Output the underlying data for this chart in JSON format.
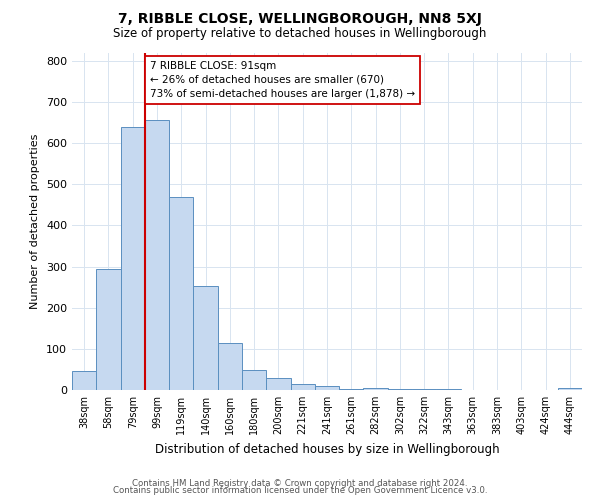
{
  "title": "7, RIBBLE CLOSE, WELLINGBOROUGH, NN8 5XJ",
  "subtitle": "Size of property relative to detached houses in Wellingborough",
  "xlabel": "Distribution of detached houses by size in Wellingborough",
  "ylabel": "Number of detached properties",
  "bar_labels": [
    "38sqm",
    "58sqm",
    "79sqm",
    "99sqm",
    "119sqm",
    "140sqm",
    "160sqm",
    "180sqm",
    "200sqm",
    "221sqm",
    "241sqm",
    "261sqm",
    "282sqm",
    "302sqm",
    "322sqm",
    "343sqm",
    "363sqm",
    "383sqm",
    "403sqm",
    "424sqm",
    "444sqm"
  ],
  "bar_heights": [
    47,
    295,
    638,
    657,
    468,
    253,
    113,
    48,
    28,
    15,
    10,
    2,
    6,
    3,
    2,
    2,
    0,
    0,
    0,
    0,
    5
  ],
  "bar_color": "#c6d9f0",
  "bar_edge_color": "#5a8fc0",
  "property_line_color": "#cc0000",
  "annotation_line1": "7 RIBBLE CLOSE: 91sqm",
  "annotation_line2": "← 26% of detached houses are smaller (670)",
  "annotation_line3": "73% of semi-detached houses are larger (1,878) →",
  "annotation_box_edge": "#cc0000",
  "ylim": [
    0,
    820
  ],
  "footer_line1": "Contains HM Land Registry data © Crown copyright and database right 2024.",
  "footer_line2": "Contains public sector information licensed under the Open Government Licence v3.0.",
  "background_color": "#ffffff",
  "grid_color": "#d8e4f0"
}
